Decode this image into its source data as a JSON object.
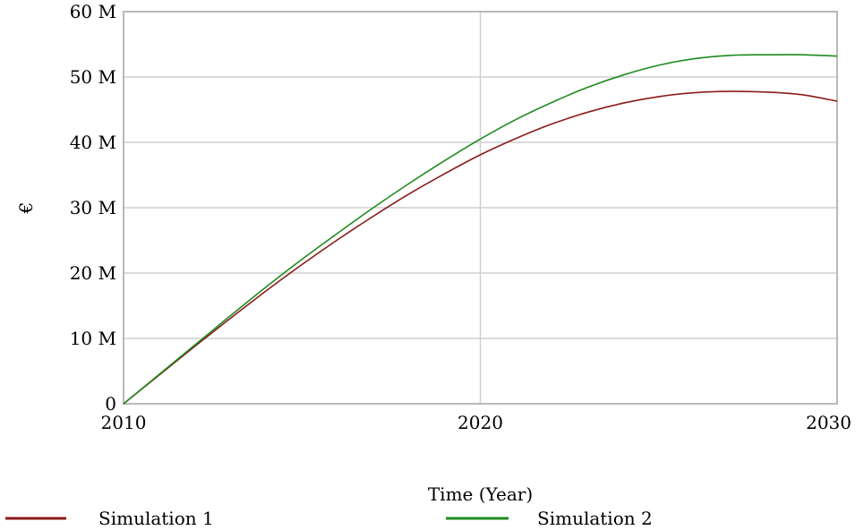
{
  "chart_data": {
    "type": "line",
    "xlabel": "Time (Year)",
    "ylabel": "€",
    "xlim": [
      2010,
      2030
    ],
    "ylim": [
      0,
      60000000
    ],
    "x_ticks": [
      {
        "value": 2010,
        "label": "2010"
      },
      {
        "value": 2020,
        "label": "2020"
      },
      {
        "value": 2030,
        "label": "2030"
      }
    ],
    "y_ticks": [
      {
        "value": 0,
        "label": "0"
      },
      {
        "value": 10000000,
        "label": "10 M"
      },
      {
        "value": 20000000,
        "label": "20 M"
      },
      {
        "value": 30000000,
        "label": "30 M"
      },
      {
        "value": 40000000,
        "label": "40 M"
      },
      {
        "value": 50000000,
        "label": "50 M"
      },
      {
        "value": 60000000,
        "label": "60 M"
      }
    ],
    "grid": true,
    "legend_position": "bottom",
    "x": [
      2010,
      2011,
      2012,
      2013,
      2014,
      2015,
      2016,
      2017,
      2018,
      2019,
      2020,
      2021,
      2022,
      2023,
      2024,
      2025,
      2026,
      2027,
      2028,
      2029,
      2030
    ],
    "series": [
      {
        "name": "Simulation 1",
        "color": "#8b1a1a",
        "values": [
          0,
          4400000,
          8800000,
          13100000,
          17300000,
          21300000,
          25100000,
          28700000,
          32100000,
          35200000,
          38100000,
          40600000,
          42800000,
          44600000,
          46000000,
          47000000,
          47600000,
          47800000,
          47700000,
          47300000,
          46300000
        ]
      },
      {
        "name": "Simulation 2",
        "color": "#1f8a1f",
        "values": [
          0,
          4500000,
          9000000,
          13500000,
          17900000,
          22100000,
          26100000,
          30000000,
          33700000,
          37200000,
          40500000,
          43500000,
          46100000,
          48400000,
          50300000,
          51800000,
          52800000,
          53300000,
          53400000,
          53400000,
          53200000
        ]
      }
    ]
  }
}
